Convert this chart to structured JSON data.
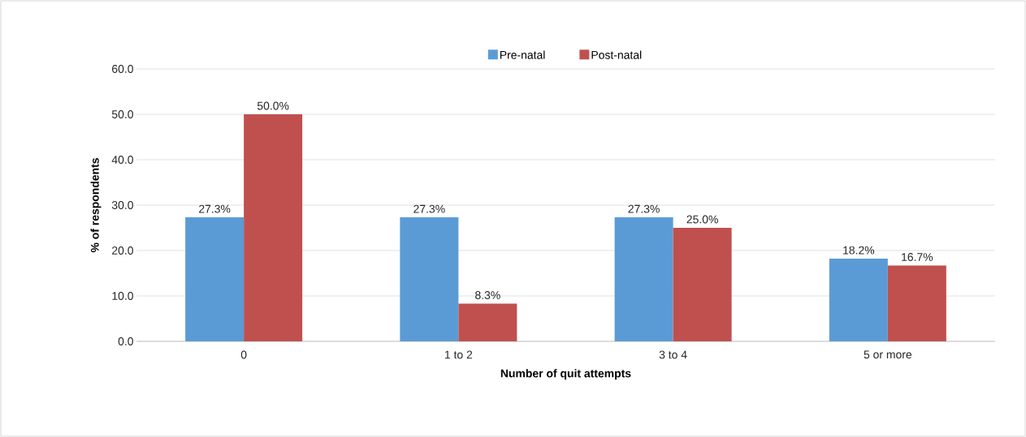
{
  "chart_data": {
    "type": "bar",
    "xlabel": "Number of quit attempts",
    "ylabel": "% of respondents",
    "categories": [
      "0",
      "1 to 2",
      "3 to 4",
      "5 or more"
    ],
    "series": [
      {
        "name": "Pre-natal",
        "color": "#5b9bd5",
        "values": [
          27.3,
          27.3,
          27.3,
          18.2
        ],
        "value_labels": [
          "27.3%",
          "27.3%",
          "27.3%",
          "18.2%"
        ]
      },
      {
        "name": "Post-natal",
        "color": "#c0504d",
        "values": [
          50.0,
          8.3,
          25.0,
          16.7
        ],
        "value_labels": [
          "50.0%",
          "8.3%",
          "25.0%",
          "16.7%"
        ]
      }
    ],
    "ylim": [
      0,
      60
    ],
    "yticks": [
      {
        "value": 0,
        "label": "0.0"
      },
      {
        "value": 10,
        "label": "10.0"
      },
      {
        "value": 20,
        "label": "20.0"
      },
      {
        "value": 30,
        "label": "30.0"
      },
      {
        "value": 40,
        "label": "40.0"
      },
      {
        "value": 50,
        "label": "50.0"
      },
      {
        "value": 60,
        "label": "60.0"
      }
    ],
    "grid": "y",
    "legend": "top"
  }
}
